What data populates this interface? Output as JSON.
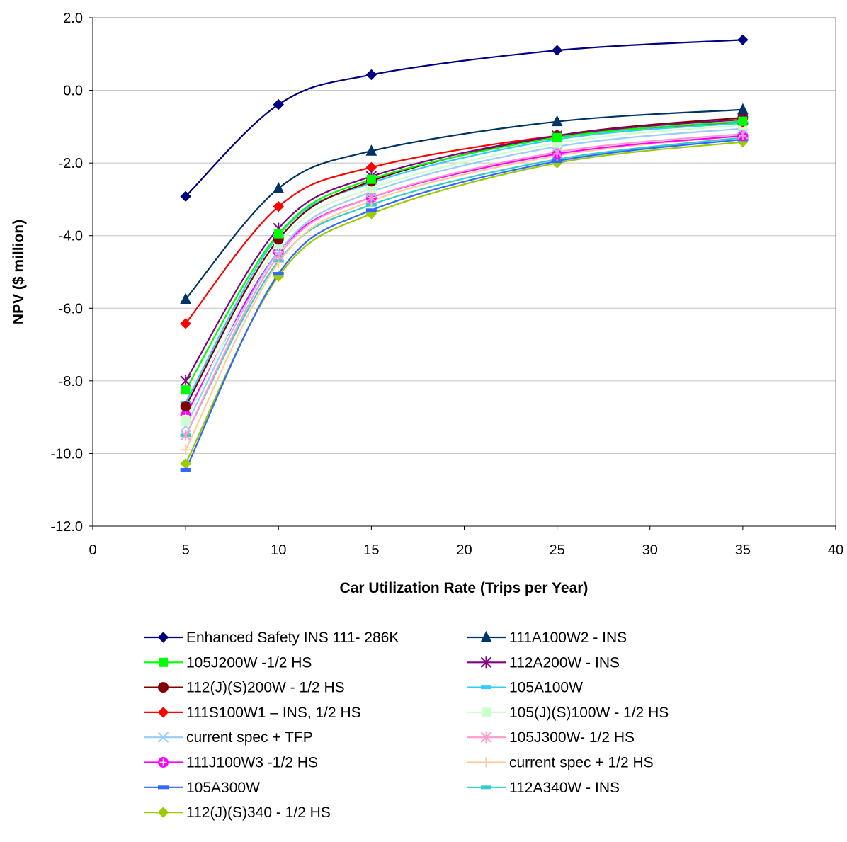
{
  "chart_data": {
    "type": "line",
    "title": "",
    "xlabel": "Car Utilization Rate (Trips per Year)",
    "ylabel": "NPV ($ million)",
    "xlim": [
      0,
      40
    ],
    "ylim": [
      -12,
      2
    ],
    "x_ticks": [
      "0",
      "5",
      "10",
      "15",
      "20",
      "25",
      "30",
      "35",
      "40"
    ],
    "y_ticks": [
      "-12.0",
      "-10.0",
      "-8.0",
      "-6.0",
      "-4.0",
      "-2.0",
      "0.0",
      "2.0"
    ],
    "grid": true,
    "legend_position": "bottom",
    "x": [
      5,
      10,
      15,
      25,
      35
    ],
    "series": [
      {
        "name": "Enhanced Safety INS 111- 286K",
        "color": "#000080",
        "marker": "diamond",
        "values": [
          -2.92,
          -0.39,
          0.43,
          1.1,
          1.39
        ]
      },
      {
        "name": "111A100W2 - INS",
        "color": "#003366",
        "marker": "triangle",
        "values": [
          -5.75,
          -2.7,
          -1.67,
          -0.86,
          -0.53
        ]
      },
      {
        "name": "105J200W -1/2 HS",
        "color": "#00ff00",
        "marker": "square",
        "values": [
          -8.25,
          -3.95,
          -2.45,
          -1.3,
          -0.85
        ]
      },
      {
        "name": "112A200W - INS",
        "color": "#800080",
        "marker": "star",
        "values": [
          -8.0,
          -3.8,
          -2.37,
          -1.25,
          -0.8
        ]
      },
      {
        "name": "112(J)(S)200W - 1/2 HS",
        "color": "#800000",
        "marker": "circle",
        "values": [
          -8.7,
          -4.1,
          -2.5,
          -1.25,
          -0.75
        ]
      },
      {
        "name": "105A100W",
        "color": "#33ccff",
        "marker": "dash",
        "values": [
          -8.6,
          -4.0,
          -2.55,
          -1.35,
          -0.9
        ]
      },
      {
        "name": "111S100W1 – INS, 1/2 HS",
        "color": "#ff0000",
        "marker": "diamond",
        "values": [
          -6.42,
          -3.2,
          -2.12,
          -1.25,
          -0.88
        ]
      },
      {
        "name": "105(J)(S)100W - 1/2 HS",
        "color": "#ccffcc",
        "marker": "square",
        "values": [
          -9.1,
          -4.25,
          -2.7,
          -1.45,
          -0.95
        ]
      },
      {
        "name": "current spec + TFP",
        "color": "#99ccff",
        "marker": "x",
        "values": [
          -9.25,
          -4.45,
          -2.8,
          -1.55,
          -1.05
        ]
      },
      {
        "name": "105J300W- 1/2 HS",
        "color": "#ff99cc",
        "marker": "star",
        "values": [
          -9.5,
          -4.55,
          -2.95,
          -1.7,
          -1.2
        ]
      },
      {
        "name": "111J100W3 -1/2 HS",
        "color": "#ff00ff",
        "marker": "circleplus",
        "values": [
          -8.95,
          -4.45,
          -2.95,
          -1.75,
          -1.25
        ]
      },
      {
        "name": "current spec + 1/2 HS",
        "color": "#ffcc99",
        "marker": "plus",
        "values": [
          -9.9,
          -4.75,
          -3.05,
          -1.8,
          -1.25
        ]
      },
      {
        "name": "105A300W",
        "color": "#3366ff",
        "marker": "dash",
        "values": [
          -10.45,
          -5.05,
          -3.3,
          -1.95,
          -1.35
        ]
      },
      {
        "name": "112A340W - INS",
        "color": "#33cccc",
        "marker": "dash",
        "values": [
          -9.5,
          -4.7,
          -3.15,
          -1.9,
          -1.3
        ]
      },
      {
        "name": "112(J)(S)340 - 1/2 HS",
        "color": "#99cc00",
        "marker": "diamond",
        "values": [
          -10.28,
          -5.12,
          -3.4,
          -2.0,
          -1.42
        ]
      }
    ]
  }
}
